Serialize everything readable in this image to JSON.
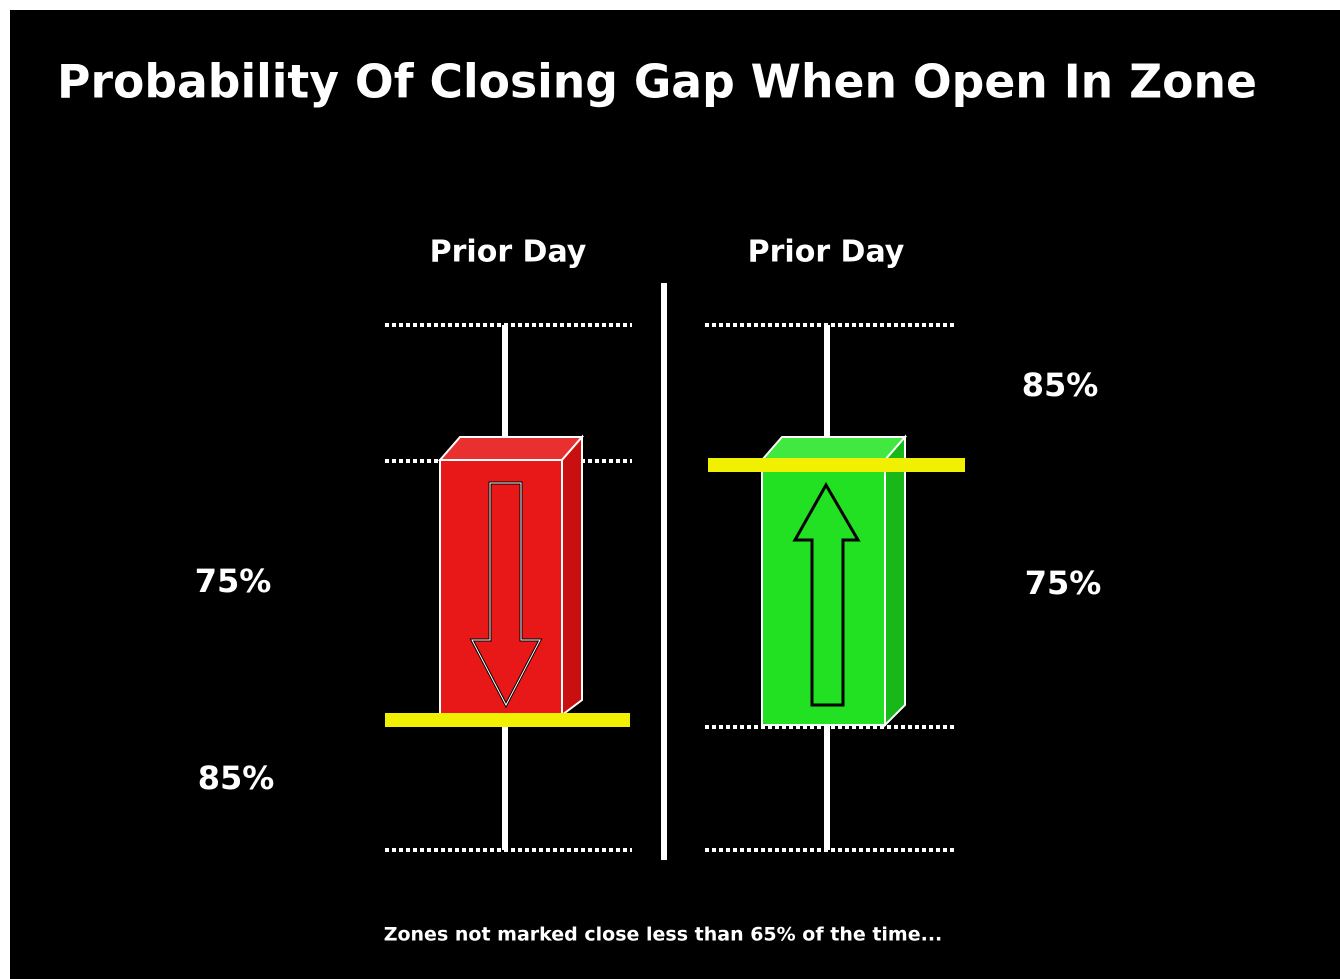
{
  "title": "Probability Of Closing Gap When Open In Zone",
  "panels": [
    {
      "label": "Prior Day",
      "zone_labels": [
        "75%",
        "85%"
      ]
    },
    {
      "label": "Prior Day",
      "zone_labels": [
        "85%",
        "75%"
      ]
    }
  ],
  "footnote": "Zones not marked close less than 65% of the time..."
}
